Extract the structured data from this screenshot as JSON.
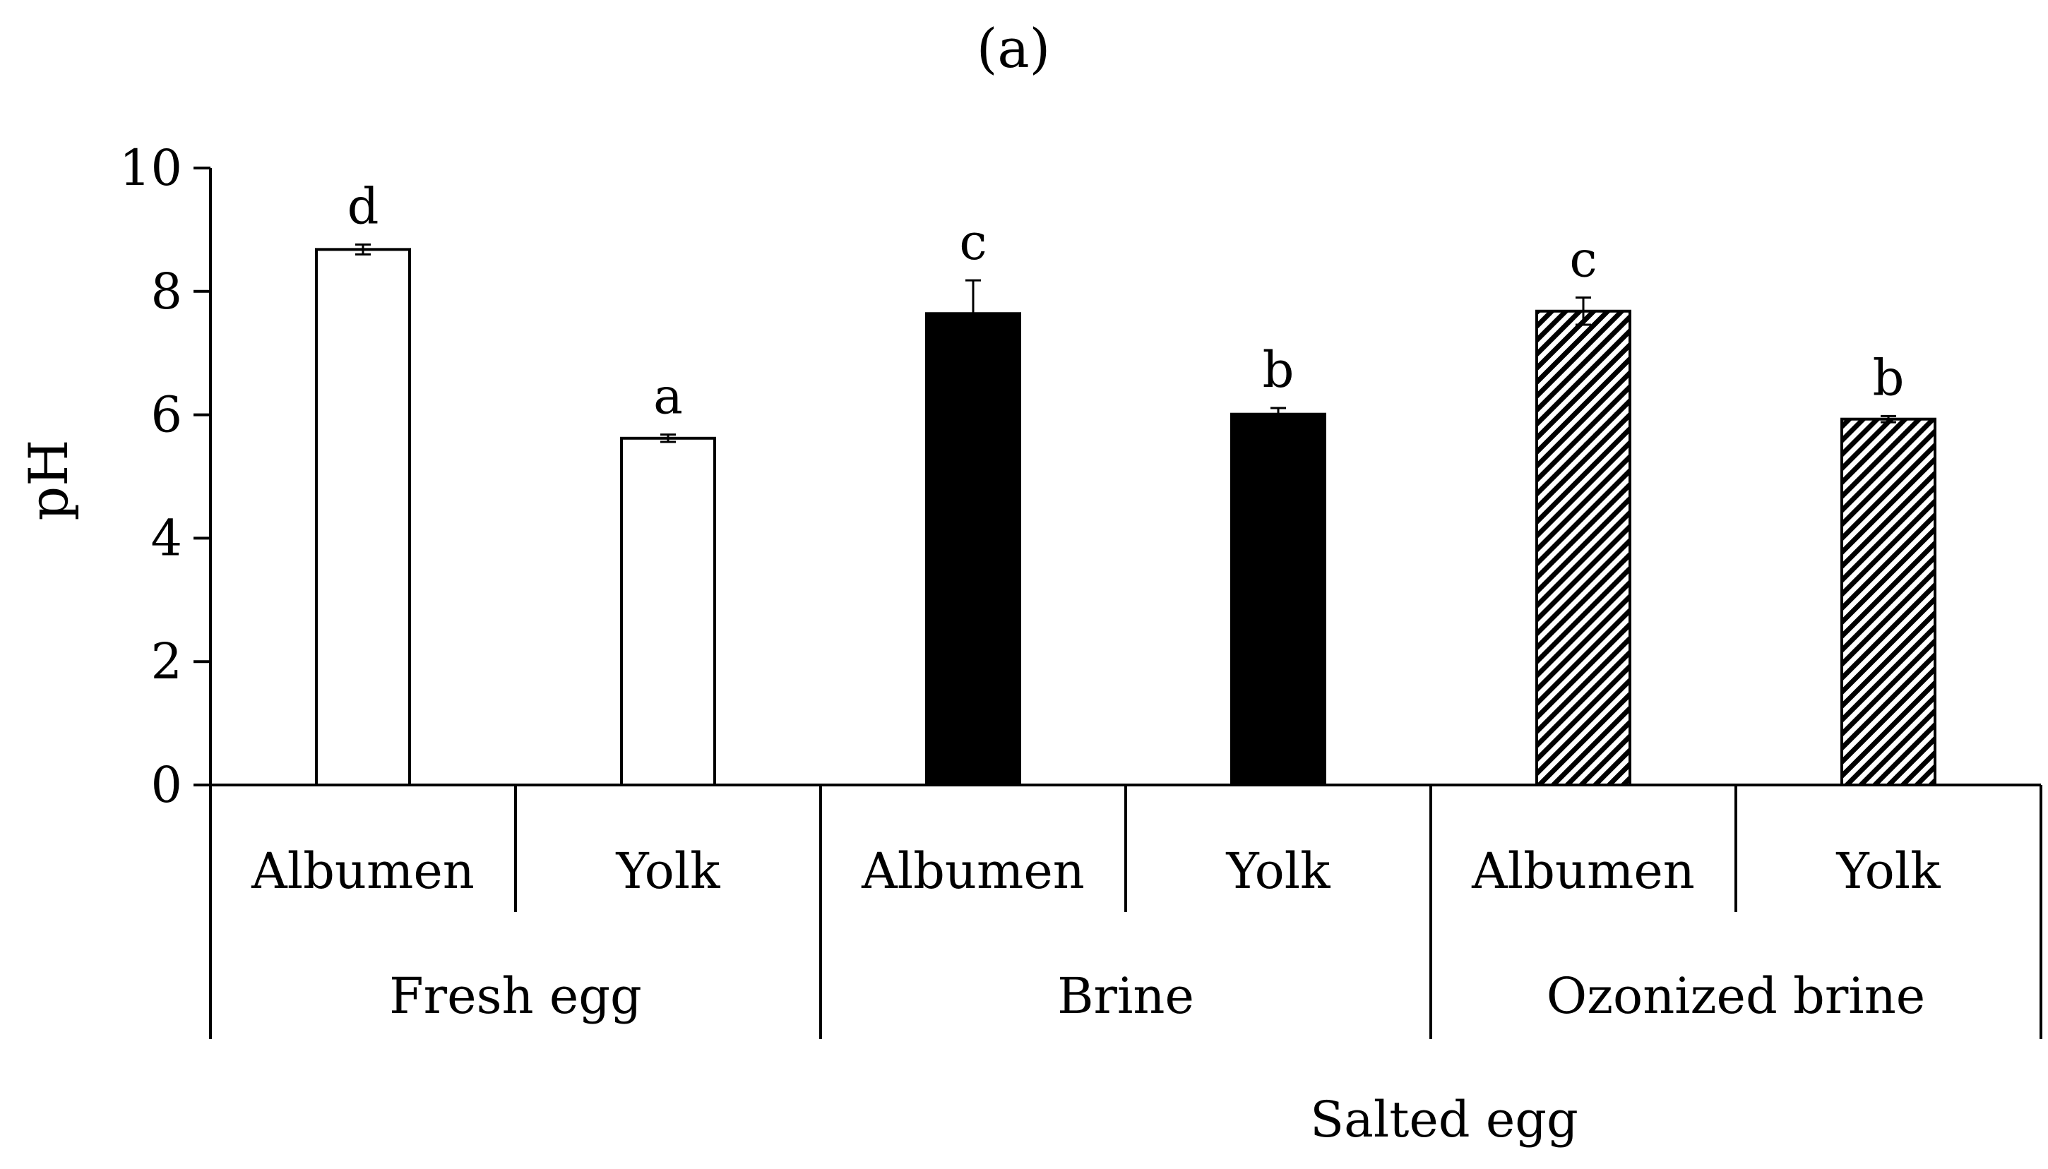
{
  "chart_data": {
    "type": "bar",
    "title": "(a)",
    "ylabel": "pH",
    "xlabel": "Salted egg",
    "ylim": [
      0,
      10
    ],
    "yticks": [
      0,
      2,
      4,
      6,
      8,
      10
    ],
    "groups": [
      "Fresh egg",
      "Brine",
      "Ozonized brine"
    ],
    "bars": [
      {
        "group": "Fresh egg",
        "category": "Albumen",
        "value": 8.68,
        "error": 0.08,
        "letter": "d",
        "fill": "white"
      },
      {
        "group": "Fresh egg",
        "category": "Yolk",
        "value": 5.62,
        "error": 0.06,
        "letter": "a",
        "fill": "white"
      },
      {
        "group": "Brine",
        "category": "Albumen",
        "value": 7.64,
        "error": 0.54,
        "letter": "c",
        "fill": "black"
      },
      {
        "group": "Brine",
        "category": "Yolk",
        "value": 6.01,
        "error": 0.1,
        "letter": "b",
        "fill": "black"
      },
      {
        "group": "Ozonized brine",
        "category": "Albumen",
        "value": 7.68,
        "error": 0.22,
        "letter": "c",
        "fill": "hatch"
      },
      {
        "group": "Ozonized brine",
        "category": "Yolk",
        "value": 5.93,
        "error": 0.05,
        "letter": "b",
        "fill": "hatch"
      }
    ]
  },
  "colors": {
    "axis": "#000000",
    "open_fill": "#ffffff",
    "solid_fill": "#000000",
    "hatch_line": "#000000"
  }
}
